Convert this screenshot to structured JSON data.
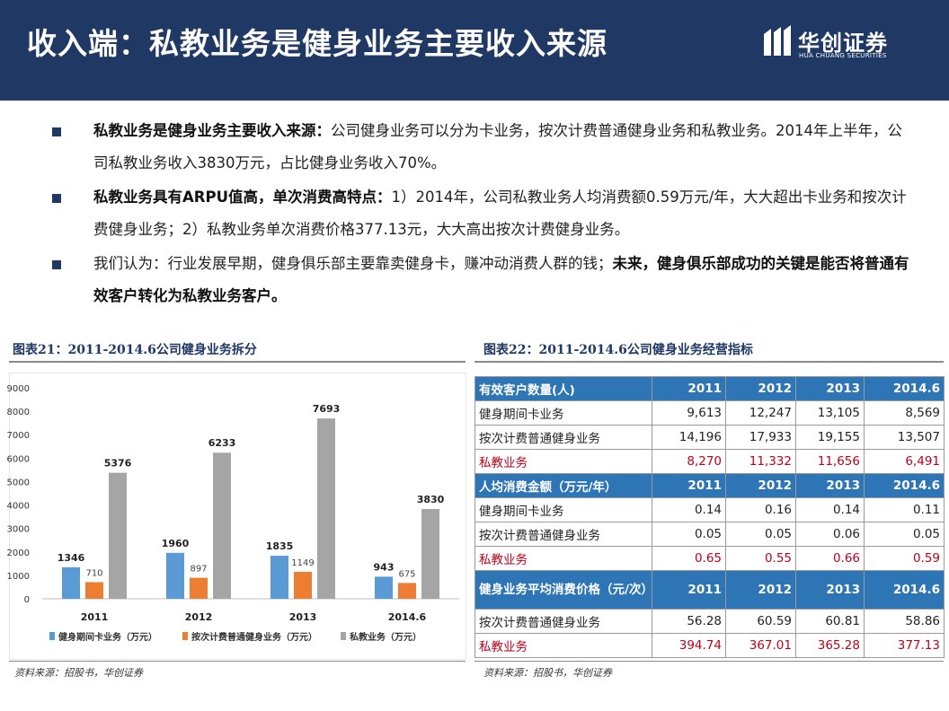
{
  "header": {
    "title": "收入端：私教业务是健身业务主要收入来源",
    "logo_cn": "华创证券",
    "logo_en": "HUA CHUANG SECURITIES"
  },
  "bullets": [
    {
      "bold": "私教业务是健身业务主要收入来源：",
      "text": "公司健身业务可以分为卡业务，按次计费普通健身业务和私教业务。2014年上半年，公司私教业务收入3830万元，占比健身业务收入70%。",
      "bold_tail": ""
    },
    {
      "bold": "私教业务具有ARPU值高，单次消费高特点：",
      "text": "1）2014年，公司私教业务人均消费额0.59万元/年，大大超出卡业务和按次计费健身业务；2）私教业务单次消费价格377.13元，大大高出按次计费健身业务。",
      "bold_tail": ""
    },
    {
      "bold": "",
      "text": "我们认为：行业发展早期，健身俱乐部主要靠卖健身卡，赚冲动消费人群的钱；",
      "bold_tail": "未来，健身俱乐部成功的关键是能否将普通有效客户转化为私教业务客户。"
    }
  ],
  "figure21": {
    "title": "图表21：2011-2014.6公司健身业务拆分",
    "source": "资料来源：招股书，华创证券"
  },
  "figure22": {
    "title": "图表22：2011-2014.6公司健身业务经营指标",
    "source": "资料来源：招股书，华创证券"
  },
  "chart_data": {
    "type": "bar",
    "categories": [
      "2011",
      "2012",
      "2013",
      "2014.6"
    ],
    "series": [
      {
        "name": "健身期间卡业务（万元）",
        "values": [
          1346,
          1960,
          1835,
          943
        ],
        "color": "#5b9bd5"
      },
      {
        "name": "按次计费普通健身业务（万元）",
        "values": [
          710,
          897,
          1149,
          675
        ],
        "color": "#ed7d31"
      },
      {
        "name": "私教业务（万元）",
        "values": [
          5376,
          6233,
          7693,
          3830
        ],
        "color": "#a5a5a5"
      }
    ],
    "yticks": [
      "0",
      "1000",
      "2000",
      "3000",
      "4000",
      "5000",
      "6000",
      "7000",
      "8000",
      "9000"
    ],
    "ylim": [
      0,
      9000
    ],
    "legend": "bottom",
    "grid": false
  },
  "table": {
    "sections": [
      {
        "header": [
          "有效客户数量(人)",
          "2011",
          "2012",
          "2013",
          "2014.6"
        ],
        "rows": [
          {
            "cells": [
              "健身期间卡业务",
              "9,613",
              "12,247",
              "13,105",
              "8,569"
            ],
            "highlight": false
          },
          {
            "cells": [
              "按次计费普通健身业务",
              "14,196",
              "17,933",
              "19,155",
              "13,507"
            ],
            "highlight": false
          },
          {
            "cells": [
              "私教业务",
              "8,270",
              "11,332",
              "11,656",
              "6,491"
            ],
            "highlight": true
          }
        ]
      },
      {
        "header": [
          "人均消费金额（万元/年）",
          "2011",
          "2012",
          "2013",
          "2014.6"
        ],
        "rows": [
          {
            "cells": [
              "健身期间卡业务",
              "0.14",
              "0.16",
              "0.14",
              "0.11"
            ],
            "highlight": false
          },
          {
            "cells": [
              "按次计费普通健身业务",
              "0.05",
              "0.05",
              "0.06",
              "0.05"
            ],
            "highlight": false
          },
          {
            "cells": [
              "私教业务",
              "0.65",
              "0.55",
              "0.66",
              "0.59"
            ],
            "highlight": true
          }
        ]
      },
      {
        "header": [
          "健身业务平均消费价格（元/次）",
          "2011",
          "2012",
          "2013",
          "2014.6"
        ],
        "tall": true,
        "rows": [
          {
            "cells": [
              "按次计费普通健身业务",
              "56.28",
              "60.59",
              "60.81",
              "58.86"
            ],
            "highlight": false
          },
          {
            "cells": [
              "私教业务",
              "394.74",
              "367.01",
              "365.28",
              "377.13"
            ],
            "highlight": true
          }
        ]
      }
    ]
  }
}
